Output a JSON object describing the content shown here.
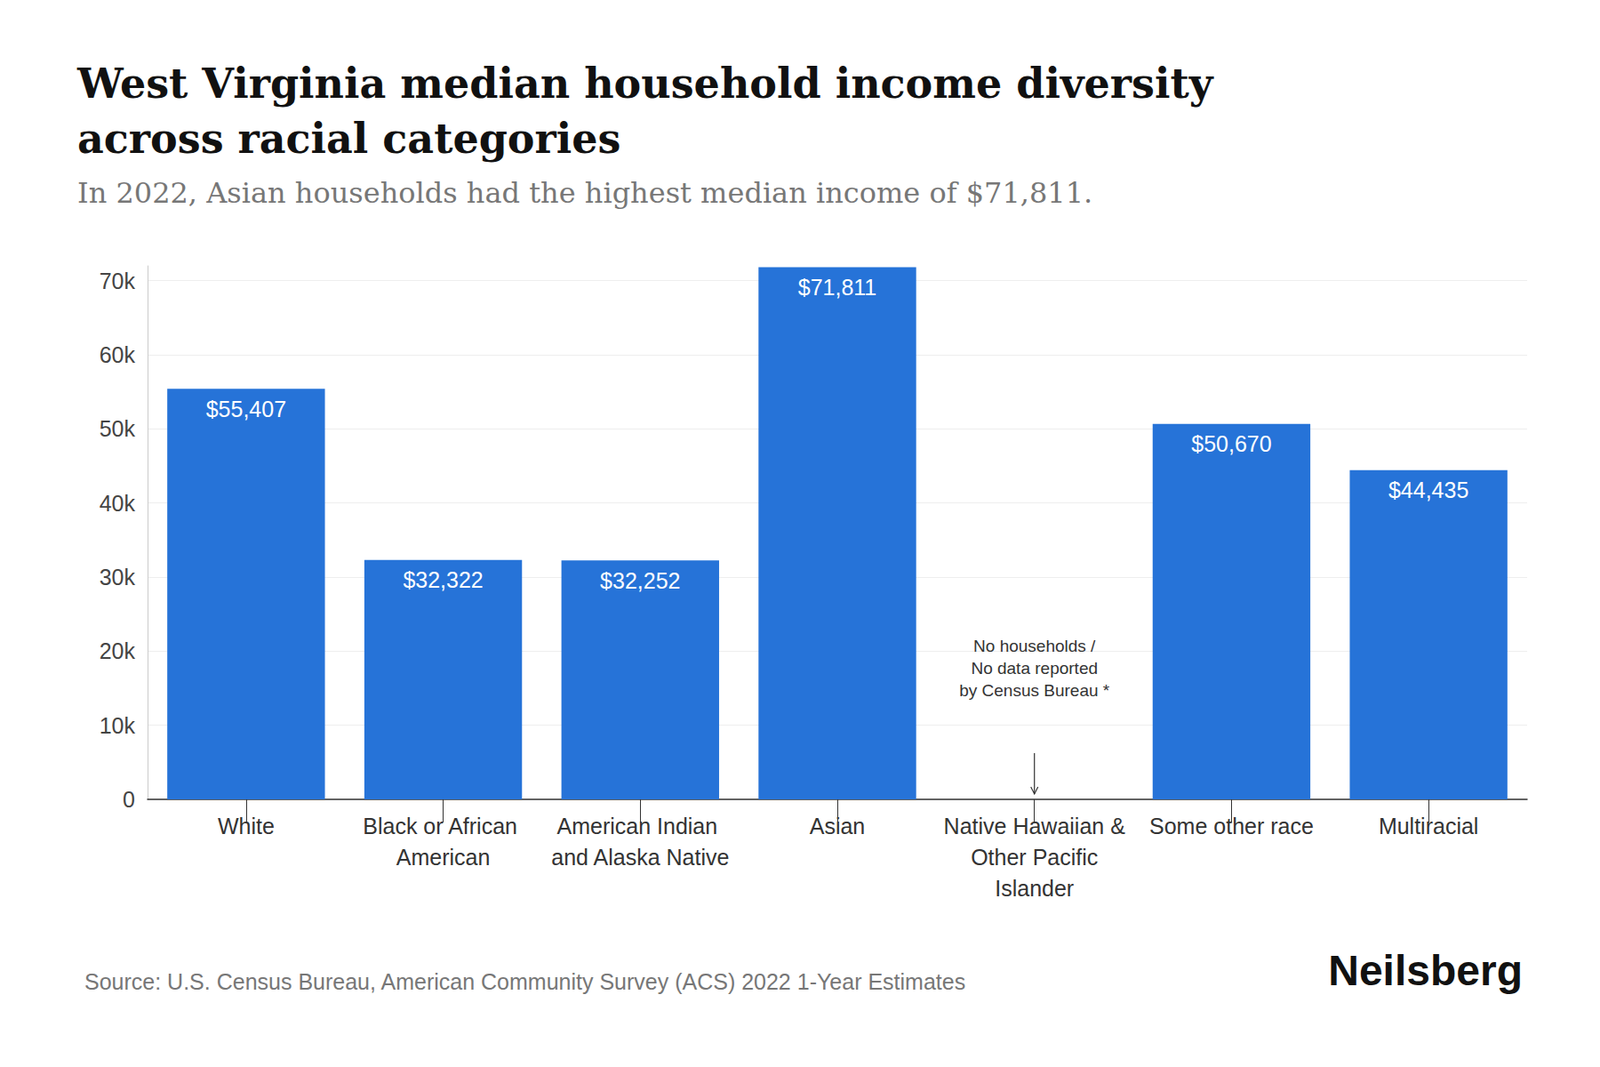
{
  "chart_data": {
    "type": "bar",
    "title": "West Virginia median household income diversity across racial categories",
    "subtitle": "In 2022, Asian households had the highest median income of $71,811.",
    "categories": [
      "White",
      "Black or African American",
      "American Indian and Alaska Native",
      "Asian",
      "Native Hawaiian & Other Pacific Islander",
      "Some other race",
      "Multiracial"
    ],
    "values": [
      55407,
      32322,
      32252,
      71811,
      null,
      50670,
      44435
    ],
    "value_labels": [
      "$55,407",
      "$32,322",
      "$32,252",
      "$71,811",
      null,
      "$50,670",
      "$44,435"
    ],
    "color": "#2673d8",
    "ylim": [
      0,
      72000
    ],
    "yticks": [
      0,
      {
        "value": 10000,
        "label": "10k"
      },
      {
        "value": 20000,
        "label": "20k"
      },
      {
        "value": 30000,
        "label": "30k"
      },
      {
        "value": 40000,
        "label": "40k"
      },
      {
        "value": 50000,
        "label": "50k"
      },
      {
        "value": 60000,
        "label": "60k"
      },
      {
        "value": 70000,
        "label": "70k"
      }
    ],
    "grid": true,
    "data_labels": true,
    "annotation": "No households /\nNo data reported\nby Census Bureau *",
    "source": "Source: U.S. Census Bureau, American Community Survey (ACS) 2022 1-Year Estimates",
    "brand": "Neilsberg"
  }
}
